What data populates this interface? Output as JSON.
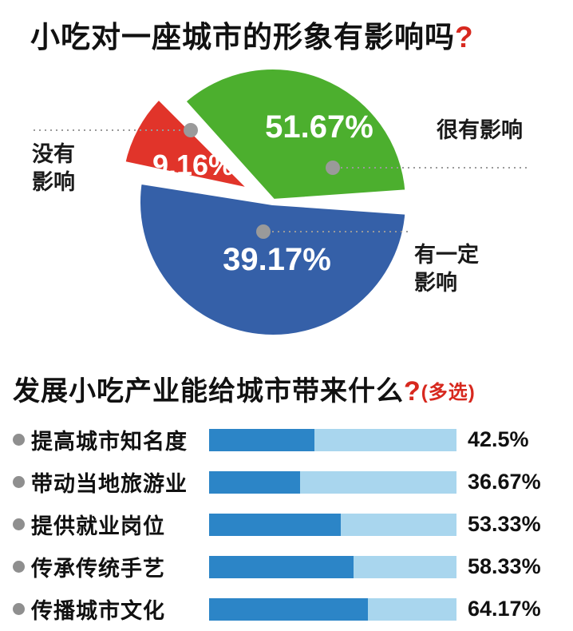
{
  "section1": {
    "title": "小吃对一座城市的形象有影响吗",
    "title_mark": "?"
  },
  "section2": {
    "title": "发展小吃产业能给城市带来什么",
    "title_mark": "?",
    "title_suffix": "(多选)"
  },
  "colors": {
    "pie_green": "#4caf2e",
    "pie_red": "#e1342a",
    "pie_blue": "#3560a8",
    "bar_fill": "#2c85c7",
    "bar_track": "#a9d6ee",
    "accent_red": "#d7281e",
    "callout_gray": "#9a9a9a"
  },
  "chart_data": [
    {
      "type": "pie",
      "title": "小吃对一座城市的形象有影响吗?",
      "legend_position": "callouts",
      "slices": [
        {
          "label": "很有影响",
          "value": 51.67,
          "display": "51.67%",
          "callout": "很有影响",
          "color": "#4caf2e",
          "exploded": false
        },
        {
          "label": "没有影响",
          "value": 9.16,
          "display": "9.16%",
          "callout": "没有\n影响",
          "color": "#e1342a",
          "exploded": true
        },
        {
          "label": "有一定影响",
          "value": 39.17,
          "display": "39.17%",
          "callout": "有一定\n影响",
          "color": "#3560a8",
          "exploded": false
        }
      ]
    },
    {
      "type": "bar",
      "title": "发展小吃产业能给城市带来什么?(多选)",
      "orientation": "horizontal",
      "xlim": [
        0,
        100
      ],
      "grid": false,
      "categories": [
        "提高城市知名度",
        "带动当地旅游业",
        "提供就业岗位",
        "传承传统手艺",
        "传播城市文化"
      ],
      "values": [
        42.5,
        36.67,
        53.33,
        58.33,
        64.17
      ],
      "value_labels": [
        "42.5%",
        "36.67%",
        "53.33%",
        "58.33%",
        "64.17%"
      ]
    }
  ]
}
